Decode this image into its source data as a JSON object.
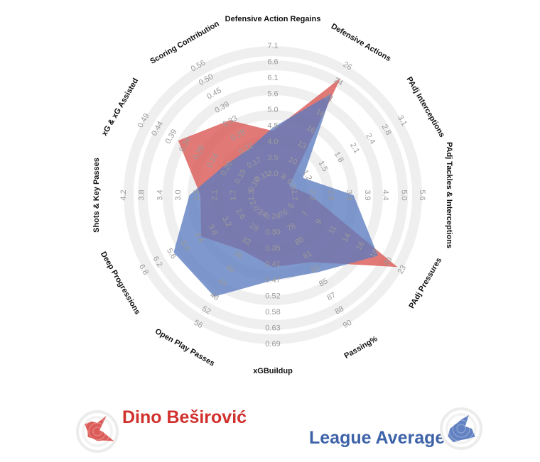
{
  "chart_data": {
    "type": "radar",
    "axes": [
      {
        "label": "Defensive Action Regains",
        "ticks": [
          "3.0",
          "3.5",
          "4.0",
          "4.5",
          "5.0",
          "5.6",
          "6.1",
          "6.6",
          "7.1"
        ]
      },
      {
        "label": "Defensive Actions",
        "ticks": [
          "8",
          "10",
          "13",
          "16",
          "18",
          "21",
          "24",
          "26"
        ]
      },
      {
        "label": "PAdj Interceptions",
        "ticks": [
          "0.9",
          "1.2",
          "1.5",
          "1.8",
          "2.1",
          "2.4",
          "2.8",
          "3.1"
        ]
      },
      {
        "label": "PAdj Tackles & Interceptions",
        "ticks": [
          "1.7",
          "2.2",
          "2.8",
          "3.3",
          "3.9",
          "4.4",
          "5.0",
          "5.6"
        ]
      },
      {
        "label": "PAdj Pressures",
        "ticks": [
          "5",
          "7",
          "9",
          "11",
          "14",
          "16",
          "18",
          "20",
          "23"
        ]
      },
      {
        "label": "Passing%",
        "ticks": [
          "76",
          "78",
          "80",
          "81",
          "83",
          "85",
          "87",
          "88",
          "90"
        ]
      },
      {
        "label": "xGBuildup",
        "ticks": [
          "0.24",
          "0.30",
          "0.35",
          "0.41",
          "0.47",
          "0.52",
          "0.58",
          "0.63",
          "0.69"
        ]
      },
      {
        "label": "Open Play Passes",
        "ticks": [
          "24",
          "28",
          "32",
          "36",
          "40",
          "44",
          "48",
          "52",
          "56"
        ]
      },
      {
        "label": "Deep Progressions",
        "ticks": [
          "2.0",
          "2.6",
          "3.2",
          "3.8",
          "4.4",
          "5.0",
          "5.6",
          "6.2",
          "6.8"
        ]
      },
      {
        "label": "Shots & Key Passes",
        "ticks": [
          "1.3",
          "1.7",
          "2.1",
          "2.5",
          "3.0",
          "3.4",
          "3.8",
          "4.2"
        ]
      },
      {
        "label": "xG & xG Assisted",
        "ticks": [
          "0.10",
          "0.15",
          "0.20",
          "0.24",
          "0.29",
          "0.34",
          "0.39",
          "0.44",
          "0.49"
        ]
      },
      {
        "label": "Scoring Contribution",
        "ticks": [
          "0.11",
          "0.17",
          "0.22",
          "0.28",
          "0.33",
          "0.39",
          "0.45",
          "0.50",
          "0.56"
        ]
      }
    ],
    "series": [
      {
        "name": "Dino Beširović",
        "color": "#d9534f",
        "values": [
          4.35,
          24.5,
          0.86,
          2.15,
          22.0,
          82.0,
          0.42,
          34.5,
          4.3,
          2.42,
          0.365,
          0.335
        ]
      },
      {
        "name": "League Average",
        "color": "#5b7bbf",
        "values": [
          4.45,
          21.8,
          1.12,
          3.45,
          18.5,
          83.5,
          0.47,
          48.0,
          5.5,
          2.7,
          0.21,
          0.215
        ]
      }
    ],
    "legend_position": "bottom",
    "grid": true
  },
  "legend": {
    "player_name": "Dino Beširović",
    "player_color": "#d0312d",
    "average_name": "League Average",
    "average_color": "#3d62a8"
  }
}
